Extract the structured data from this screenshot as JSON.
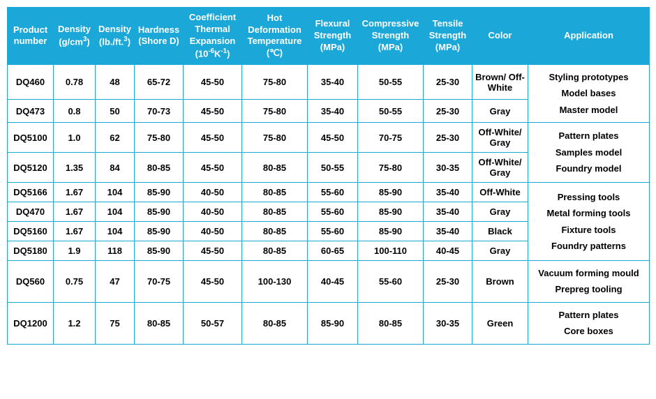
{
  "headers": {
    "product": "Product number",
    "density_g": "Density (g/cm³)",
    "density_lb": "Density (lb./ft.³)",
    "hardness": "Hardness (Shore D)",
    "cte": "Coefficient Thermal Expansion (10⁻⁶K⁻¹)",
    "hdt": "Hot Deformation Temperature (℃)",
    "flexural": "Flexural Strength (MPa)",
    "compressive": "Compressive Strength (MPa)",
    "tensile": "Tensile Strength (MPa)",
    "color": "Color",
    "application": "Application"
  },
  "rows": [
    {
      "product": "DQ460",
      "d_g": "0.78",
      "d_lb": "48",
      "hard": "65-72",
      "cte": "45-50",
      "hdt": "75-80",
      "flex": "35-40",
      "comp": "50-55",
      "tens": "25-30",
      "color": "Brown/ Off-White"
    },
    {
      "product": "DQ473",
      "d_g": "0.8",
      "d_lb": "50",
      "hard": "70-73",
      "cte": "45-50",
      "hdt": "75-80",
      "flex": "35-40",
      "comp": "50-55",
      "tens": "25-30",
      "color": "Gray"
    },
    {
      "product": "DQ5100",
      "d_g": "1.0",
      "d_lb": "62",
      "hard": "75-80",
      "cte": "45-50",
      "hdt": "75-80",
      "flex": "45-50",
      "comp": "70-75",
      "tens": "25-30",
      "color": "Off-White/ Gray"
    },
    {
      "product": "DQ5120",
      "d_g": "1.35",
      "d_lb": "84",
      "hard": "80-85",
      "cte": "45-50",
      "hdt": "80-85",
      "flex": "50-55",
      "comp": "75-80",
      "tens": "30-35",
      "color": "Off-White/ Gray"
    },
    {
      "product": "DQ5166",
      "d_g": "1.67",
      "d_lb": "104",
      "hard": "85-90",
      "cte": "40-50",
      "hdt": "80-85",
      "flex": "55-60",
      "comp": "85-90",
      "tens": "35-40",
      "color": "Off-White"
    },
    {
      "product": "DQ470",
      "d_g": "1.67",
      "d_lb": "104",
      "hard": "85-90",
      "cte": "40-50",
      "hdt": "80-85",
      "flex": "55-60",
      "comp": "85-90",
      "tens": "35-40",
      "color": "Gray"
    },
    {
      "product": "DQ5160",
      "d_g": "1.67",
      "d_lb": "104",
      "hard": "85-90",
      "cte": "40-50",
      "hdt": "80-85",
      "flex": "55-60",
      "comp": "85-90",
      "tens": "35-40",
      "color": "Black"
    },
    {
      "product": "DQ5180",
      "d_g": "1.9",
      "d_lb": "118",
      "hard": "85-90",
      "cte": "45-50",
      "hdt": "80-85",
      "flex": "60-65",
      "comp": "100-110",
      "tens": "40-45",
      "color": "Gray"
    },
    {
      "product": "DQ560",
      "d_g": "0.75",
      "d_lb": "47",
      "hard": "70-75",
      "cte": "45-50",
      "hdt": "100-130",
      "flex": "40-45",
      "comp": "55-60",
      "tens": "25-30",
      "color": "Brown"
    },
    {
      "product": "DQ1200",
      "d_g": "1.2",
      "d_lb": "75",
      "hard": "80-85",
      "cte": "50-57",
      "hdt": "80-85",
      "flex": "85-90",
      "comp": "80-85",
      "tens": "30-35",
      "color": "Green"
    }
  ],
  "applications": {
    "group1": {
      "l1": "Styling prototypes",
      "l2": "Model bases",
      "l3": "Master model"
    },
    "group2": {
      "l1": "Pattern plates",
      "l2": "Samples model",
      "l3": "Foundry model"
    },
    "group3": {
      "l1": "Pressing tools",
      "l2": "Metal forming tools",
      "l3": "Fixture tools",
      "l4": "Foundry patterns"
    },
    "group4": {
      "l1": "Vacuum forming mould",
      "l2": "Prepreg tooling"
    },
    "group5": {
      "l1": "Pattern plates",
      "l2": "Core boxes"
    }
  },
  "style": {
    "header_bg": "#1ba8d8",
    "header_fg": "#ffffff",
    "border_color": "#1ba8d8",
    "cell_bg": "#ffffff",
    "cell_fg": "#000000",
    "font_size_header": 13,
    "font_size_cell": 13
  }
}
